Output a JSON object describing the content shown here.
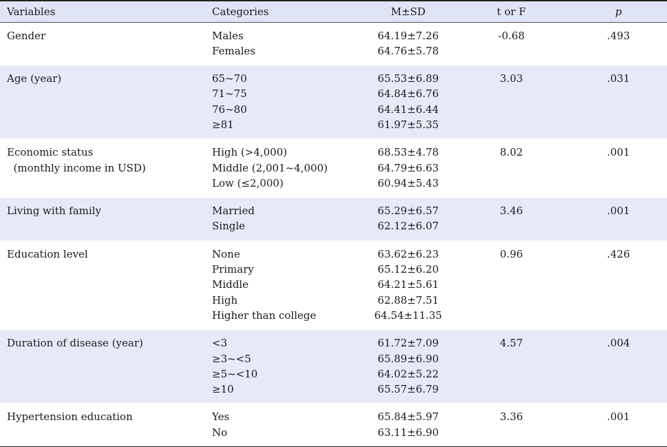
{
  "header": {
    "variables": "Variables",
    "categories": "Categories",
    "msd": "M±SD",
    "tf": "t or F",
    "p": "p"
  },
  "rows": [
    {
      "variable": [
        "Gender"
      ],
      "categories": [
        "Males",
        "Females"
      ],
      "msd": [
        "64.19±7.26",
        "64.76±5.78"
      ],
      "tf": "-0.68",
      "p": ".493"
    },
    {
      "variable": [
        "Age (year)"
      ],
      "categories": [
        "65~70",
        "71~75",
        "76~80",
        "≥81"
      ],
      "msd": [
        "65.53±6.89",
        "64.84±6.76",
        "64.41±6.44",
        "61.97±5.35"
      ],
      "tf": "3.03",
      "p": ".031"
    },
    {
      "variable": [
        "Economic status",
        "  (monthly income in USD)"
      ],
      "categories": [
        "High (>4,000)",
        "Middle (2,001~4,000)",
        "Low (≤2,000)"
      ],
      "msd": [
        "68.53±4.78",
        "64.79±6.63",
        "60.94±5.43"
      ],
      "tf": "8.02",
      "p": ".001"
    },
    {
      "variable": [
        "Living with family"
      ],
      "categories": [
        "Married",
        "Single"
      ],
      "msd": [
        "65.29±6.57",
        "62.12±6.07"
      ],
      "tf": "3.46",
      "p": ".001"
    },
    {
      "variable": [
        "Education level"
      ],
      "categories": [
        "None",
        "Primary",
        "Middle",
        "High",
        "Higher than college"
      ],
      "msd": [
        "63.62±6.23",
        "65.12±6.20",
        "64.21±5.61",
        "62.88±7.51",
        "64.54±11.35"
      ],
      "tf": "0.96",
      "p": ".426"
    },
    {
      "variable": [
        "Duration of disease (year)"
      ],
      "categories": [
        "<3",
        "≥3~<5",
        "≥5~<10",
        "≥10"
      ],
      "msd": [
        "61.72±7.09",
        "65.89±6.90",
        "64.02±5.22",
        "65.57±6.79"
      ],
      "tf": "4.57",
      "p": ".004"
    },
    {
      "variable": [
        "Hypertension education"
      ],
      "categories": [
        "Yes",
        "No"
      ],
      "msd": [
        "65.84±5.97",
        "63.11±6.90"
      ],
      "tf": "3.36",
      "p": ".001"
    }
  ]
}
